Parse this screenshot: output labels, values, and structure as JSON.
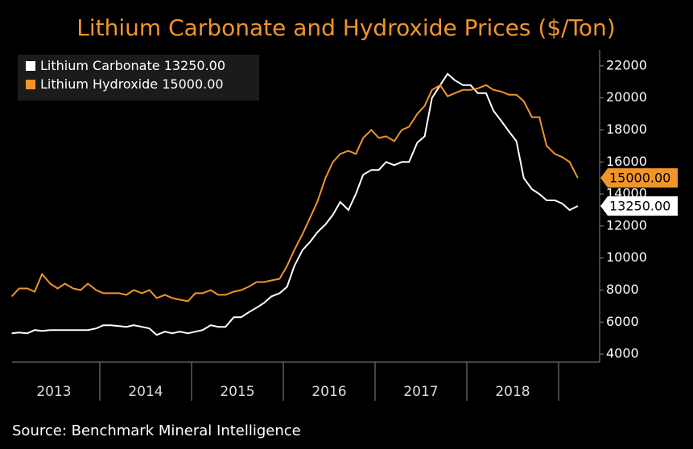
{
  "chart_data": {
    "type": "line",
    "title": "Lithium Carbonate and Hydroxide Prices ($/Ton)",
    "source": "Source: Benchmark Mineral Intelligence",
    "x": [
      2013.04,
      2013.12,
      2013.21,
      2013.29,
      2013.37,
      2013.46,
      2013.54,
      2013.62,
      2013.71,
      2013.79,
      2013.87,
      2013.96,
      2014.04,
      2014.12,
      2014.21,
      2014.29,
      2014.37,
      2014.46,
      2014.54,
      2014.62,
      2014.71,
      2014.79,
      2014.87,
      2014.96,
      2015.04,
      2015.12,
      2015.21,
      2015.29,
      2015.37,
      2015.46,
      2015.54,
      2015.62,
      2015.71,
      2015.79,
      2015.87,
      2015.96,
      2016.04,
      2016.12,
      2016.21,
      2016.29,
      2016.37,
      2016.46,
      2016.54,
      2016.62,
      2016.71,
      2016.79,
      2016.87,
      2016.96,
      2017.04,
      2017.12,
      2017.21,
      2017.29,
      2017.37,
      2017.46,
      2017.54,
      2017.62,
      2017.71,
      2017.79,
      2017.87,
      2017.96,
      2018.04,
      2018.12,
      2018.21,
      2018.29,
      2018.37,
      2018.46,
      2018.54,
      2018.62,
      2018.71,
      2018.79,
      2018.87,
      2018.96,
      2019.04,
      2019.12,
      2019.21
    ],
    "series": [
      {
        "name": "Lithium Carbonate",
        "color": "#ffffff",
        "last_label": "13250.00",
        "values": [
          5300,
          5350,
          5300,
          5500,
          5450,
          5500,
          5500,
          5500,
          5500,
          5500,
          5500,
          5600,
          5800,
          5800,
          5750,
          5700,
          5800,
          5700,
          5600,
          5200,
          5400,
          5300,
          5400,
          5300,
          5400,
          5500,
          5800,
          5700,
          5700,
          6300,
          6300,
          6600,
          6900,
          7200,
          7600,
          7800,
          8200,
          9500,
          10500,
          11000,
          11600,
          12100,
          12700,
          13500,
          13000,
          14000,
          15200,
          15500,
          15500,
          16000,
          15800,
          16000,
          16000,
          17200,
          17600,
          20000,
          20800,
          21500,
          21100,
          20800,
          20800,
          20300,
          20300,
          19200,
          18600,
          17900,
          17300,
          15000,
          14300,
          14000,
          13600,
          13600,
          13400,
          13000,
          13250
        ]
      },
      {
        "name": "Lithium Hydroxide",
        "color": "#f0952a",
        "last_label": "15000.00",
        "values": [
          7600,
          8100,
          8100,
          7900,
          9000,
          8400,
          8100,
          8400,
          8100,
          8000,
          8400,
          8000,
          7800,
          7800,
          7800,
          7700,
          8000,
          7800,
          8000,
          7500,
          7700,
          7500,
          7400,
          7300,
          7800,
          7800,
          8000,
          7700,
          7700,
          7900,
          8000,
          8200,
          8500,
          8500,
          8600,
          8700,
          9500,
          10500,
          11500,
          12500,
          13500,
          15000,
          16000,
          16500,
          16700,
          16500,
          17500,
          18000,
          17500,
          17600,
          17300,
          18000,
          18200,
          19000,
          19500,
          20500,
          20800,
          20100,
          20300,
          20500,
          20500,
          20600,
          20800,
          20500,
          20400,
          20200,
          20200,
          19800,
          18800,
          18800,
          17000,
          16500,
          16300,
          16000,
          15000
        ]
      }
    ],
    "xlim": [
      2013.0,
      2019.4
    ],
    "xticks": [
      {
        "value": 2013.5,
        "label": "2013"
      },
      {
        "value": 2014.5,
        "label": "2014"
      },
      {
        "value": 2015.5,
        "label": "2015"
      },
      {
        "value": 2016.5,
        "label": "2016"
      },
      {
        "value": 2017.5,
        "label": "2017"
      },
      {
        "value": 2018.5,
        "label": "2018"
      }
    ],
    "ylim": [
      3500,
      23000
    ],
    "yticks": [
      4000,
      6000,
      8000,
      10000,
      12000,
      14000,
      16000,
      18000,
      20000,
      22000
    ],
    "legend": "top-left"
  }
}
